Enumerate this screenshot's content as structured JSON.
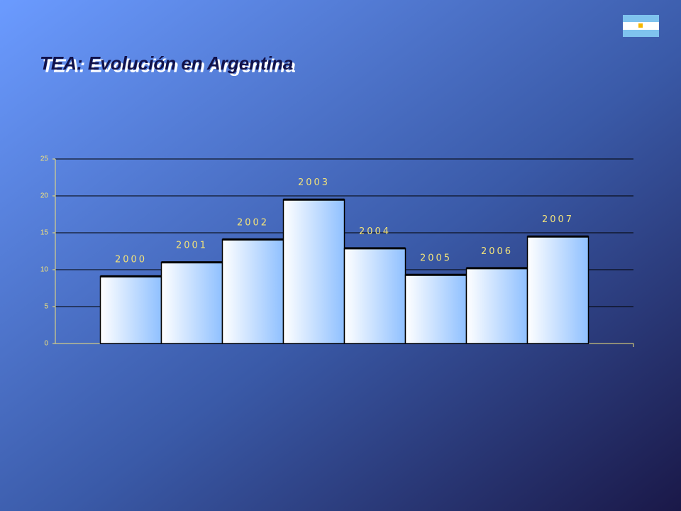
{
  "chart_data": {
    "type": "bar",
    "title": "TEA: Evolución en Argentina",
    "categories": [
      "2000",
      "2001",
      "2002",
      "2003",
      "2004",
      "2005",
      "2006",
      "2007"
    ],
    "values": [
      9.1,
      11.0,
      14.1,
      19.5,
      12.9,
      9.3,
      10.2,
      14.5
    ],
    "color": "#cfe4ff",
    "ylim": [
      0,
      25
    ],
    "yticks": [
      0,
      5,
      10,
      15,
      20,
      25
    ],
    "grid": true
  }
}
